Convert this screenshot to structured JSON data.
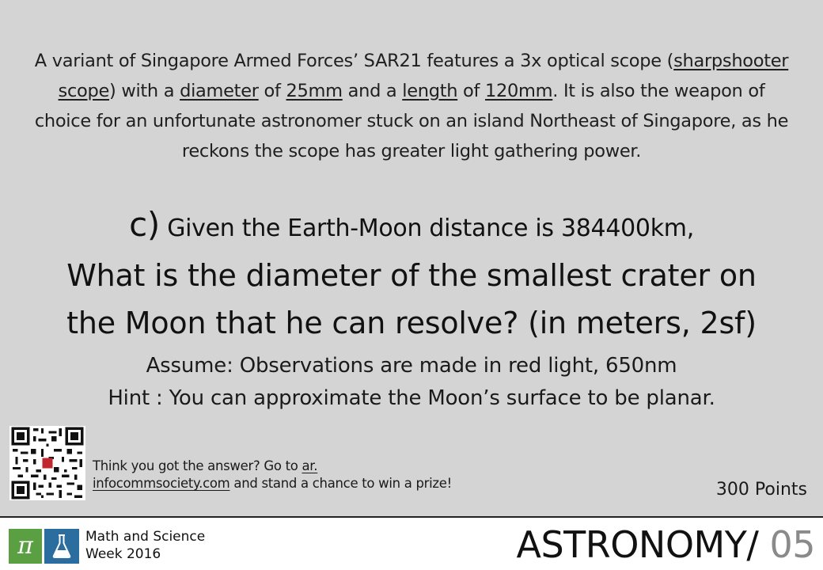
{
  "intro": {
    "t1": "A variant of Singapore Armed Forces’ SAR21 features a 3x optical scope (",
    "sharpshooter": "sharpshooter scope",
    "t2": ") with a ",
    "diameter": "diameter",
    "t3": " of ",
    "d_value": "25mm",
    "t4": " and a ",
    "length": "length",
    "t5": " of ",
    "l_value": "120mm",
    "t6": ". It is also the weapon of choice for an unfortunate astronomer stuck on an island Northeast of Singapore, as he reckons the scope has greater light gathering power."
  },
  "question": {
    "letter": "c)",
    "given": " Given the Earth-Moon distance is 384400km,",
    "line1": "What is the diameter of the smallest crater on",
    "line2": "the Moon that he can resolve? (in meters, 2sf)",
    "assume": "Assume: Observations are made in red light, 650nm",
    "hint": "Hint : You can approximate the Moon’s surface to be planar."
  },
  "cta": {
    "t1": "Think you got the answer? Go to ",
    "link": "ar. infocommsociety.com",
    "t2": " and stand a chance to win a prize!"
  },
  "points": "300 Points",
  "footer": {
    "pi_icon": "π",
    "brand_line1": "Math and Science",
    "brand_line2": "Week 2016",
    "category": "ASTRONOMY/",
    "number": " 05"
  },
  "colors": {
    "background": "#d4d4d4",
    "pi_tile": "#5aa043",
    "flask_tile": "#2a6d9e",
    "number_gray": "#8a8a8a"
  },
  "icons": [
    "qr-code-icon",
    "pi-icon",
    "flask-icon"
  ]
}
